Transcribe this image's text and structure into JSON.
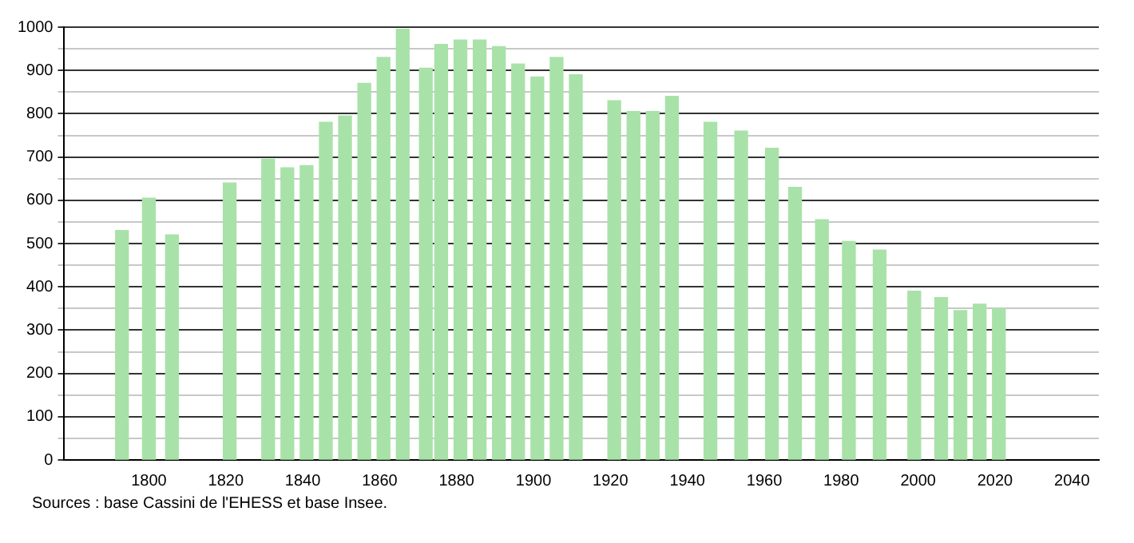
{
  "chart_data": {
    "type": "bar",
    "x": [
      1793,
      1800,
      1806,
      1821,
      1831,
      1836,
      1841,
      1846,
      1851,
      1856,
      1861,
      1866,
      1872,
      1876,
      1881,
      1886,
      1891,
      1896,
      1901,
      1906,
      1911,
      1921,
      1926,
      1931,
      1936,
      1946,
      1954,
      1962,
      1968,
      1975,
      1982,
      1990,
      1999,
      2006,
      2011,
      2016,
      2021
    ],
    "values": [
      530,
      605,
      520,
      640,
      695,
      675,
      680,
      780,
      795,
      870,
      930,
      995,
      905,
      960,
      970,
      970,
      955,
      915,
      885,
      930,
      890,
      830,
      805,
      805,
      840,
      780,
      760,
      720,
      630,
      555,
      505,
      485,
      390,
      375,
      345,
      360,
      350
    ],
    "color": "#a8e2a8",
    "xlim": [
      1778,
      2047
    ],
    "xticks": [
      1800,
      1820,
      1840,
      1860,
      1880,
      1900,
      1920,
      1940,
      1960,
      1980,
      2000,
      2020,
      2040
    ],
    "ylim": [
      0,
      1000
    ],
    "yticks": [
      0,
      {
        "value": 50,
        "label": null
      },
      100,
      {
        "value": 150,
        "label": null
      },
      200,
      {
        "value": 250,
        "label": null
      },
      300,
      {
        "value": 350,
        "label": null
      },
      400,
      {
        "value": 450,
        "label": null
      },
      500,
      {
        "value": 550,
        "label": null
      },
      600,
      {
        "value": 650,
        "label": null
      },
      700,
      {
        "value": 750,
        "label": null
      },
      800,
      {
        "value": 850,
        "label": null
      },
      900,
      {
        "value": 950,
        "label": null
      },
      1000
    ],
    "grid": "y",
    "annotations": [
      "Sources : base Cassini de l'EHESS et base Insee."
    ]
  }
}
